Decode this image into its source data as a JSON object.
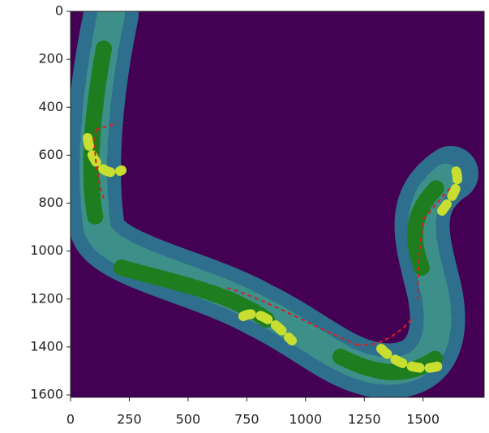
{
  "chart_data": {
    "type": "image",
    "xlim": [
      0,
      1760
    ],
    "ylim": [
      1610,
      0
    ],
    "xticks": [
      0,
      250,
      500,
      750,
      1000,
      1250,
      1500
    ],
    "yticks": [
      0,
      200,
      400,
      600,
      800,
      1000,
      1200,
      1400,
      1600
    ]
  }
}
